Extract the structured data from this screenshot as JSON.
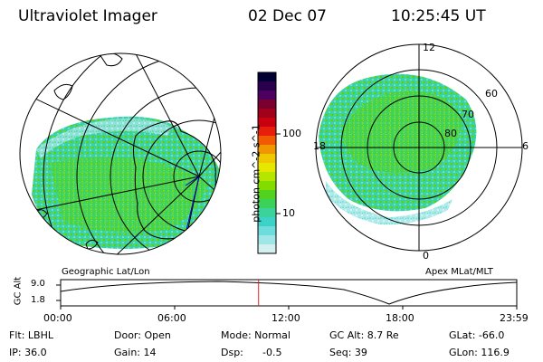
{
  "header": {
    "instrument": "Ultraviolet Imager",
    "date": "02 Dec 07",
    "time": "10:25:45 UT"
  },
  "left_panel": {
    "caption": "Geographic Lat/Lon"
  },
  "right_panel": {
    "caption": "Apex MLat/MLT",
    "mlt_labels": {
      "top": "12",
      "left": "18",
      "right": "6",
      "bottom": "0"
    },
    "lat_labels": [
      "60",
      "70",
      "80"
    ]
  },
  "colorbar": {
    "unit_label": "photon cm^-2 s^-1",
    "ticks": [
      "100",
      "10"
    ],
    "colors": [
      "#000033",
      "#2a004e",
      "#4d0060",
      "#7a0030",
      "#a0001a",
      "#c80010",
      "#e61e0a",
      "#f05a00",
      "#f09600",
      "#f0c800",
      "#e6e600",
      "#b4e600",
      "#82dc00",
      "#50d21e",
      "#3cd25a",
      "#3cd29b",
      "#3cd2c8",
      "#6edcdc",
      "#a0e6e6",
      "#d2f0f0"
    ]
  },
  "timeline": {
    "y_axis_label": "GC Alt",
    "y_ticks": [
      "9.0",
      "1.8"
    ],
    "x_ticks": [
      "00:00",
      "06:00",
      "12:00",
      "18:00",
      "23:59"
    ],
    "current_time_fraction": 0.434,
    "marker_color": "#e02020"
  },
  "info": {
    "flt": "Flt: LBHL",
    "ip": "IP: 36.0",
    "door": "Door: Open",
    "gain": "Gain: 14",
    "mode": "Mode: Normal",
    "dsp": "Dsp:",
    "dsp_val": "-0.5",
    "gc_alt": "GC Alt: 8.7 Re",
    "seq": "Seq: 39",
    "glat": "GLat: -66.0",
    "glon": "GLon: 116.9"
  }
}
